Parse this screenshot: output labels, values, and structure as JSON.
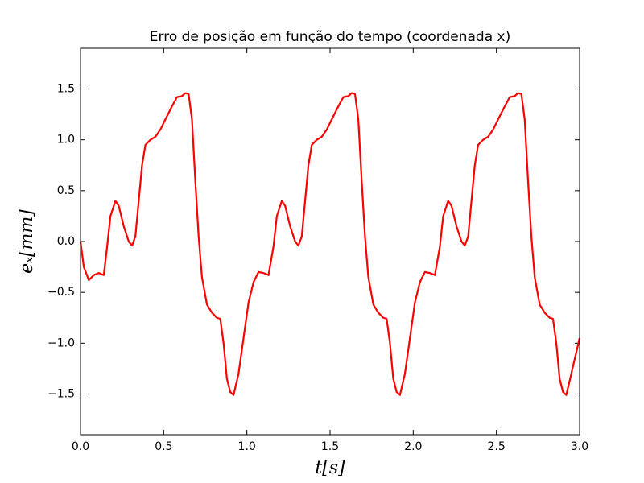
{
  "chart_data": {
    "type": "line",
    "title": "Erro de posição em função do tempo (coordenada x)",
    "xlabel": "t[s]",
    "ylabel": "eₓ[mm]",
    "color": "#ff0000",
    "x": [
      0,
      0.02,
      0.05,
      0.08,
      0.11,
      0.14,
      0.16,
      0.18,
      0.21,
      0.23,
      0.26,
      0.29,
      0.31,
      0.33,
      0.35,
      0.37,
      0.39,
      0.42,
      0.45,
      0.48,
      0.51,
      0.55,
      0.58,
      0.61,
      0.63,
      0.65,
      0.67,
      0.69,
      0.71,
      0.73,
      0.76,
      0.79,
      0.82,
      0.84,
      0.86,
      0.88,
      0.9,
      0.92,
      0.95,
      0.98,
      1.01,
      1.04,
      1.07,
      1.1,
      1.13,
      1.16,
      1.18,
      1.21,
      1.23,
      1.26,
      1.29,
      1.31,
      1.33,
      1.35,
      1.37,
      1.39,
      1.42,
      1.45,
      1.48,
      1.51,
      1.55,
      1.58,
      1.61,
      1.63,
      1.65,
      1.67,
      1.69,
      1.71,
      1.73,
      1.76,
      1.79,
      1.82,
      1.84,
      1.86,
      1.88,
      1.9,
      1.92,
      1.95,
      1.98,
      2.01,
      2.04,
      2.07,
      2.1,
      2.13,
      2.16,
      2.18,
      2.21,
      2.23,
      2.26,
      2.29,
      2.31,
      2.33,
      2.35,
      2.37,
      2.39,
      2.42,
      2.45,
      2.48,
      2.51,
      2.55,
      2.58,
      2.61,
      2.63,
      2.65,
      2.67,
      2.69,
      2.71,
      2.73,
      2.76,
      2.79,
      2.82,
      2.84,
      2.86,
      2.88,
      2.9,
      2.92,
      2.95,
      3.0
    ],
    "values": [
      0,
      -0.25,
      -0.38,
      -0.33,
      -0.31,
      -0.33,
      -0.05,
      0.25,
      0.4,
      0.35,
      0.15,
      0.0,
      -0.04,
      0.05,
      0.4,
      0.75,
      0.95,
      1.0,
      1.03,
      1.1,
      1.2,
      1.33,
      1.42,
      1.43,
      1.46,
      1.45,
      1.2,
      0.6,
      0.05,
      -0.35,
      -0.62,
      -0.7,
      -0.75,
      -0.76,
      -1.0,
      -1.35,
      -1.48,
      -1.51,
      -1.3,
      -0.95,
      -0.6,
      -0.4,
      -0.3,
      -0.31,
      -0.33,
      -0.05,
      0.25,
      0.4,
      0.35,
      0.15,
      0.0,
      -0.04,
      0.05,
      0.4,
      0.75,
      0.95,
      1.0,
      1.03,
      1.1,
      1.2,
      1.33,
      1.42,
      1.43,
      1.46,
      1.45,
      1.2,
      0.6,
      0.05,
      -0.35,
      -0.62,
      -0.7,
      -0.75,
      -0.76,
      -1.0,
      -1.35,
      -1.48,
      -1.51,
      -1.3,
      -0.95,
      -0.6,
      -0.4,
      -0.3,
      -0.31,
      -0.33,
      -0.05,
      0.25,
      0.4,
      0.35,
      0.15,
      0.0,
      -0.04,
      0.05,
      0.4,
      0.75,
      0.95,
      1.0,
      1.03,
      1.1,
      1.2,
      1.33,
      1.42,
      1.43,
      1.46,
      1.45,
      1.2,
      0.6,
      0.05,
      -0.35,
      -0.62,
      -0.7,
      -0.75,
      -0.76,
      -1.0,
      -1.35,
      -1.48,
      -1.51,
      -1.3,
      -0.95
    ],
    "xlim": [
      0,
      3
    ],
    "ylim": [
      -1.9,
      1.9
    ],
    "xticks": [
      {
        "value": 0,
        "label": "0.0"
      },
      {
        "value": 0.5,
        "label": "0.5"
      },
      {
        "value": 1,
        "label": "1.0"
      },
      {
        "value": 1.5,
        "label": "1.5"
      },
      {
        "value": 2,
        "label": "2.0"
      },
      {
        "value": 2.5,
        "label": "2.5"
      },
      {
        "value": 3,
        "label": "3.0"
      }
    ],
    "yticks": [
      {
        "value": -1.5,
        "label": "−1.5"
      },
      {
        "value": -1,
        "label": "−1.0"
      },
      {
        "value": -0.5,
        "label": "−0.5"
      },
      {
        "value": 0,
        "label": "0.0"
      },
      {
        "value": 0.5,
        "label": "0.5"
      },
      {
        "value": 1,
        "label": "1.0"
      },
      {
        "value": 1.5,
        "label": "1.5"
      }
    ],
    "grid": false
  }
}
